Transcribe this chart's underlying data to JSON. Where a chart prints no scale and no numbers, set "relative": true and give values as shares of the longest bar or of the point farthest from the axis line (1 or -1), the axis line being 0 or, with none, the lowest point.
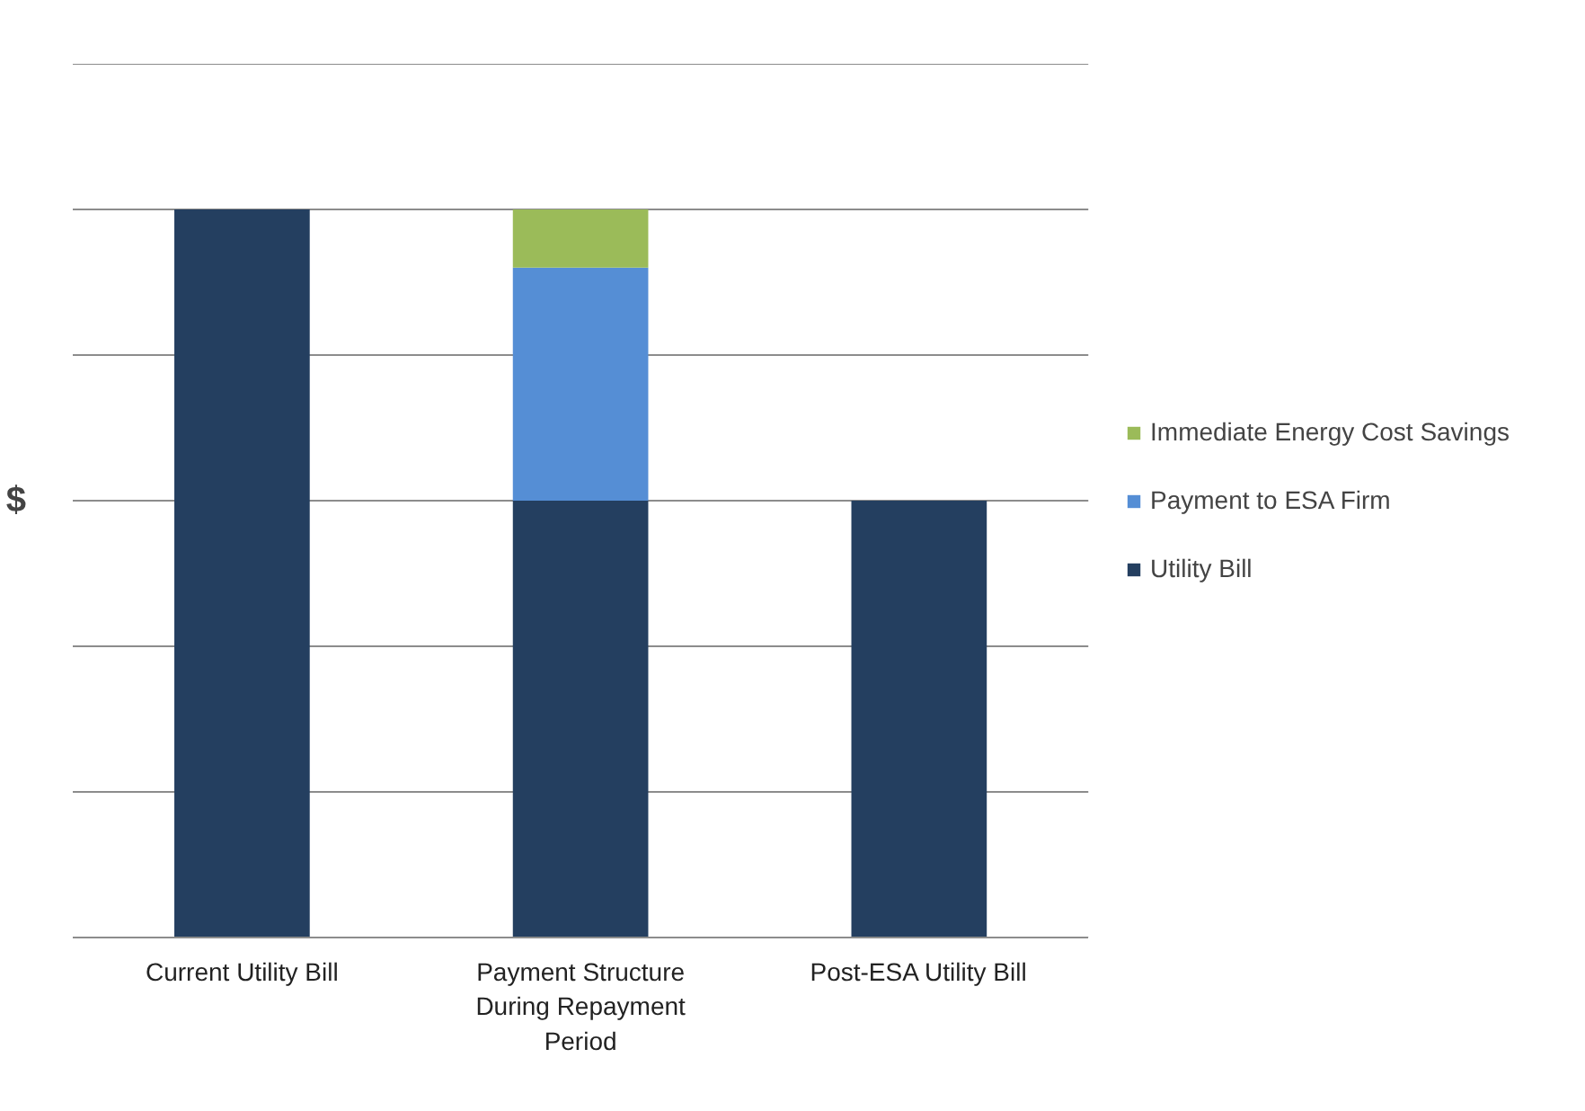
{
  "chart_data": {
    "type": "bar",
    "stacked": true,
    "relative": true,
    "ylabel": "$",
    "categories": [
      "Current Utility Bill",
      "Payment Structure During Repayment Period",
      "Post-ESA Utility Bill"
    ],
    "series": [
      {
        "name": "Utility Bill",
        "color": "#243f60",
        "values": [
          1,
          0.6,
          0.6
        ]
      },
      {
        "name": "Payment to ESA Firm",
        "color": "#558ed5",
        "values": [
          0,
          0.32,
          0
        ]
      },
      {
        "name": "Immediate Energy Cost Savings",
        "color": "#9bbb59",
        "values": [
          0,
          0.08,
          0
        ]
      }
    ],
    "grid": "y",
    "legend": "right"
  }
}
